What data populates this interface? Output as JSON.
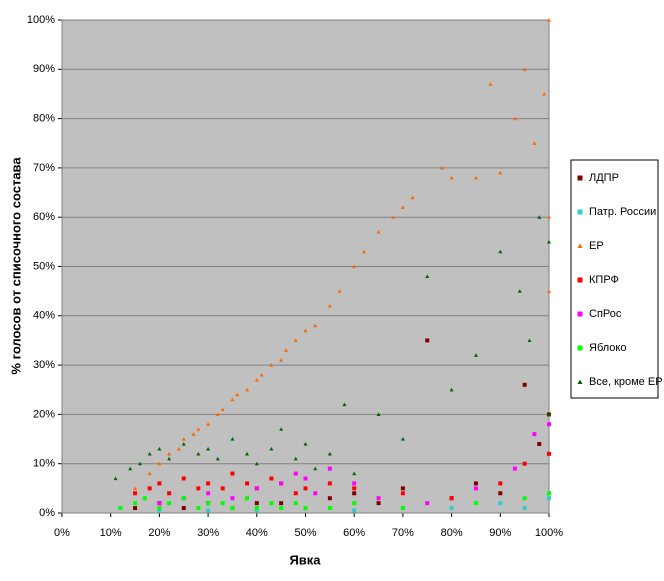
{
  "chart_data": {
    "type": "scatter",
    "x_label": "Явка",
    "y_label": "% голосов от списочного состава",
    "xlim": [
      0,
      100
    ],
    "ylim": [
      0,
      100
    ],
    "xticks": [
      {
        "value": 0,
        "label": "0%"
      },
      {
        "value": 10,
        "label": "10%"
      },
      {
        "value": 20,
        "label": "20%"
      },
      {
        "value": 30,
        "label": "30%"
      },
      {
        "value": 40,
        "label": "40%"
      },
      {
        "value": 50,
        "label": "50%"
      },
      {
        "value": 60,
        "label": "60%"
      },
      {
        "value": 70,
        "label": "70%"
      },
      {
        "value": 80,
        "label": "80%"
      },
      {
        "value": 90,
        "label": "90%"
      },
      {
        "value": 100,
        "label": "100%"
      }
    ],
    "yticks": [
      {
        "value": 0,
        "label": "0%"
      },
      {
        "value": 10,
        "label": "10%"
      },
      {
        "value": 20,
        "label": "20%"
      },
      {
        "value": 30,
        "label": "30%"
      },
      {
        "value": 40,
        "label": "40%"
      },
      {
        "value": 50,
        "label": "50%"
      },
      {
        "value": 60,
        "label": "60%"
      },
      {
        "value": 70,
        "label": "70%"
      },
      {
        "value": 80,
        "label": "80%"
      },
      {
        "value": 90,
        "label": "90%"
      },
      {
        "value": 100,
        "label": "100%"
      }
    ],
    "grid": true,
    "legend": "right",
    "series": [
      {
        "name": "ЛДПР",
        "color": "#800000",
        "marker": "square",
        "x": [
          15,
          20,
          25,
          30,
          35,
          40,
          45,
          50,
          55,
          60,
          65,
          70,
          75,
          80,
          85,
          90,
          95,
          98,
          100
        ],
        "values": [
          1,
          2,
          1,
          2,
          1,
          2,
          2,
          1,
          3,
          4,
          2,
          5,
          35,
          3,
          6,
          4,
          26,
          14,
          20
        ]
      },
      {
        "name": "Патр. России",
        "color": "#33cccc",
        "marker": "square",
        "x": [
          20,
          30,
          40,
          50,
          60,
          70,
          80,
          90,
          95,
          100
        ],
        "values": [
          0.5,
          0.5,
          0.5,
          1,
          0.5,
          1,
          1,
          2,
          1,
          3
        ]
      },
      {
        "name": "ЕР",
        "color": "#ff6600",
        "marker": "triangle",
        "x": [
          15,
          18,
          20,
          22,
          24,
          25,
          27,
          28,
          30,
          32,
          33,
          35,
          36,
          38,
          40,
          41,
          43,
          45,
          46,
          48,
          50,
          52,
          55,
          57,
          60,
          62,
          65,
          68,
          70,
          72,
          78,
          80,
          85,
          88,
          90,
          93,
          95,
          97,
          99,
          100,
          100,
          100
        ],
        "values": [
          5,
          8,
          10,
          12,
          13,
          15,
          16,
          17,
          18,
          20,
          21,
          23,
          24,
          25,
          27,
          28,
          30,
          31,
          33,
          35,
          37,
          38,
          42,
          45,
          50,
          53,
          57,
          60,
          62,
          64,
          70,
          68,
          68,
          87,
          69,
          80,
          90,
          75,
          85,
          100,
          60,
          45
        ]
      },
      {
        "name": "КПРФ",
        "color": "#ff0000",
        "marker": "square",
        "x": [
          15,
          18,
          20,
          22,
          25,
          28,
          30,
          33,
          35,
          38,
          40,
          43,
          45,
          48,
          50,
          55,
          60,
          70,
          80,
          90,
          95,
          100
        ],
        "values": [
          4,
          5,
          6,
          4,
          7,
          5,
          6,
          5,
          8,
          6,
          5,
          7,
          6,
          4,
          5,
          6,
          5,
          4,
          3,
          6,
          10,
          12
        ]
      },
      {
        "name": "СпРос",
        "color": "#ff00ff",
        "marker": "square",
        "x": [
          20,
          25,
          30,
          35,
          40,
          45,
          48,
          50,
          52,
          55,
          60,
          65,
          75,
          85,
          93,
          97,
          100
        ],
        "values": [
          2,
          3,
          4,
          3,
          5,
          6,
          8,
          7,
          4,
          9,
          6,
          3,
          2,
          5,
          9,
          16,
          18
        ]
      },
      {
        "name": "Яблоко",
        "color": "#00ff00",
        "marker": "square",
        "x": [
          12,
          15,
          17,
          20,
          22,
          25,
          28,
          30,
          33,
          35,
          38,
          40,
          43,
          45,
          48,
          50,
          55,
          60,
          70,
          85,
          95,
          100
        ],
        "values": [
          1,
          2,
          3,
          1,
          2,
          3,
          1,
          2,
          2,
          1,
          3,
          1,
          2,
          1,
          2,
          1,
          1,
          2,
          1,
          2,
          3,
          4
        ]
      },
      {
        "name": "Все, кроме ЕР",
        "color": "#006600",
        "marker": "triangle",
        "x": [
          11,
          14,
          16,
          18,
          20,
          22,
          25,
          28,
          30,
          32,
          35,
          38,
          40,
          43,
          45,
          48,
          50,
          52,
          55,
          58,
          60,
          65,
          70,
          75,
          80,
          85,
          90,
          94,
          96,
          98,
          100,
          100
        ],
        "values": [
          7,
          9,
          10,
          12,
          13,
          11,
          14,
          12,
          13,
          11,
          15,
          12,
          10,
          13,
          17,
          11,
          14,
          9,
          12,
          22,
          8,
          20,
          15,
          48,
          25,
          32,
          53,
          45,
          35,
          60,
          55,
          20
        ]
      }
    ]
  }
}
